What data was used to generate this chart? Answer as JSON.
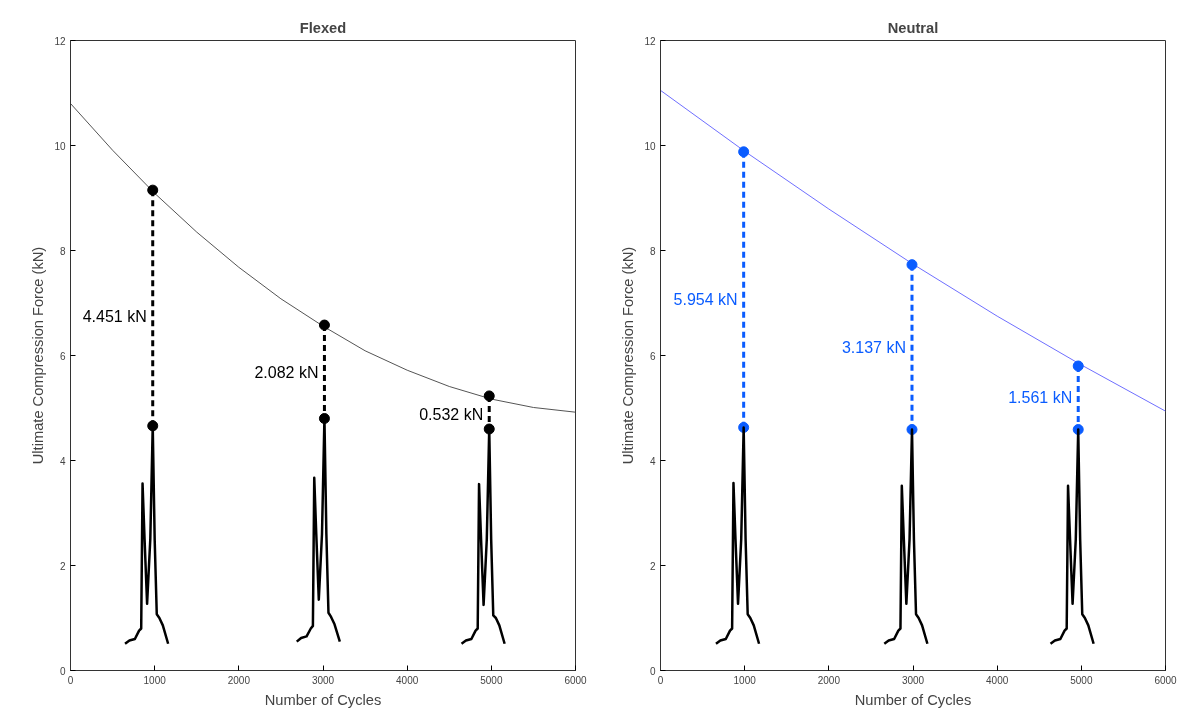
{
  "chart_data": [
    {
      "type": "line",
      "title": "Flexed",
      "xlabel": "Number of Cycles",
      "ylabel": "Ultimate Compression Force (kN)",
      "xlim": [
        0,
        6000
      ],
      "xticks": [
        0,
        1000,
        2000,
        3000,
        4000,
        5000,
        6000
      ],
      "ylim": [
        0,
        12
      ],
      "yticks": [
        0,
        2,
        4,
        6,
        8,
        10,
        12
      ],
      "grid": false,
      "series": [
        {
          "color": "#555555",
          "line_style": "solid",
          "marker": "none",
          "x": [
            0,
            500,
            1000,
            1500,
            2000,
            2500,
            3000,
            3500,
            4000,
            4500,
            5000,
            5500,
            6000
          ],
          "values": [
            10.8,
            9.91,
            9.09,
            8.35,
            7.68,
            7.08,
            6.56,
            6.09,
            5.72,
            5.41,
            5.17,
            5.01,
            4.92
          ]
        },
        {
          "color": "#000000",
          "line_style": "dashed",
          "marker": "circle",
          "x": [
            977,
            977
          ],
          "values": [
            9.15,
            4.66
          ]
        },
        {
          "color": "#000000",
          "line_style": "dashed",
          "marker": "circle",
          "x": [
            3017,
            3017
          ],
          "values": [
            6.58,
            4.8
          ]
        },
        {
          "color": "#000000",
          "line_style": "dashed",
          "marker": "circle",
          "x": [
            4975,
            4975
          ],
          "values": [
            5.23,
            4.6
          ]
        },
        {
          "color": "#000000",
          "line_style": "solid",
          "marker": "none",
          "x": [
            648,
            700,
            765,
            815,
            840,
            856,
            880,
            910,
            948,
            977,
            1000,
            1025,
            1056,
            1097,
            1160
          ],
          "values": [
            0.51,
            0.57,
            0.6,
            0.76,
            0.8,
            3.56,
            2.5,
            1.27,
            2.5,
            4.66,
            2.5,
            1.07,
            1.0,
            0.86,
            0.51
          ]
        },
        {
          "color": "#000000",
          "line_style": "solid",
          "marker": "none",
          "x": [
            2688,
            2740,
            2805,
            2855,
            2880,
            2896,
            2920,
            2950,
            2988,
            3017,
            3040,
            3065,
            3096,
            3137,
            3200
          ],
          "values": [
            0.55,
            0.62,
            0.65,
            0.8,
            0.85,
            3.67,
            2.6,
            1.35,
            2.6,
            4.8,
            2.6,
            1.1,
            1.02,
            0.88,
            0.55
          ]
        },
        {
          "color": "#000000",
          "line_style": "solid",
          "marker": "none",
          "x": [
            4646,
            4698,
            4763,
            4813,
            4838,
            4854,
            4878,
            4908,
            4946,
            4975,
            4998,
            5023,
            5054,
            5095,
            5158
          ],
          "values": [
            0.51,
            0.57,
            0.6,
            0.76,
            0.8,
            3.55,
            2.5,
            1.25,
            2.5,
            4.6,
            2.5,
            1.05,
            1.0,
            0.86,
            0.51
          ]
        }
      ],
      "annotations": [
        {
          "text": "4.451 kN",
          "x": 977,
          "y": 6.75
        },
        {
          "text": "2.082 kN",
          "x": 3017,
          "y": 5.68
        },
        {
          "text": "0.532 kN",
          "x": 4975,
          "y": 4.88
        }
      ]
    },
    {
      "type": "line",
      "title": "Neutral",
      "xlabel": "Number of Cycles",
      "ylabel": "Ultimate Compression Force (kN)",
      "xlim": [
        0,
        6000
      ],
      "xticks": [
        0,
        1000,
        2000,
        3000,
        4000,
        5000,
        6000
      ],
      "ylim": [
        0,
        12
      ],
      "yticks": [
        0,
        2,
        4,
        6,
        8,
        10,
        12
      ],
      "grid": false,
      "series": [
        {
          "color": "#6f6fff",
          "line_style": "solid",
          "marker": "none",
          "x": [
            0,
            1000,
            2000,
            3000,
            4000,
            5000,
            6000
          ],
          "values": [
            11.05,
            9.89,
            8.79,
            7.74,
            6.75,
            5.82,
            4.94
          ]
        },
        {
          "color": "#0a5cff",
          "line_style": "dashed",
          "marker": "circle",
          "x": [
            988,
            988
          ],
          "values": [
            9.88,
            4.63
          ]
        },
        {
          "color": "#0a5cff",
          "line_style": "dashed",
          "marker": "circle",
          "x": [
            2988,
            2988
          ],
          "values": [
            7.73,
            4.59
          ]
        },
        {
          "color": "#0a5cff",
          "line_style": "dashed",
          "marker": "circle",
          "x": [
            4963,
            4963
          ],
          "values": [
            5.8,
            4.59
          ]
        },
        {
          "color": "#000000",
          "line_style": "solid",
          "marker": "none",
          "x": [
            659,
            711,
            776,
            826,
            851,
            867,
            891,
            921,
            959,
            988,
            1011,
            1036,
            1067,
            1108,
            1171
          ],
          "values": [
            0.51,
            0.57,
            0.6,
            0.76,
            0.8,
            3.57,
            2.5,
            1.27,
            2.5,
            4.63,
            2.5,
            1.07,
            1.0,
            0.86,
            0.51
          ]
        },
        {
          "color": "#000000",
          "line_style": "solid",
          "marker": "none",
          "x": [
            2659,
            2711,
            2776,
            2826,
            2851,
            2867,
            2891,
            2921,
            2959,
            2988,
            3011,
            3036,
            3067,
            3108,
            3171
          ],
          "values": [
            0.51,
            0.57,
            0.6,
            0.76,
            0.8,
            3.52,
            2.5,
            1.27,
            2.5,
            4.59,
            2.5,
            1.07,
            1.0,
            0.86,
            0.51
          ]
        },
        {
          "color": "#000000",
          "line_style": "solid",
          "marker": "none",
          "x": [
            4634,
            4686,
            4751,
            4801,
            4826,
            4842,
            4866,
            4896,
            4934,
            4963,
            4986,
            5011,
            5042,
            5083,
            5146
          ],
          "values": [
            0.51,
            0.57,
            0.6,
            0.76,
            0.8,
            3.52,
            2.5,
            1.27,
            2.5,
            4.59,
            2.5,
            1.07,
            1.0,
            0.86,
            0.51
          ]
        }
      ],
      "annotations": [
        {
          "text": "5.954 kN",
          "x": 988,
          "y": 7.06
        },
        {
          "text": "3.137 kN",
          "x": 2988,
          "y": 6.16
        },
        {
          "text": "1.561 kN",
          "x": 4963,
          "y": 5.2
        }
      ]
    }
  ]
}
